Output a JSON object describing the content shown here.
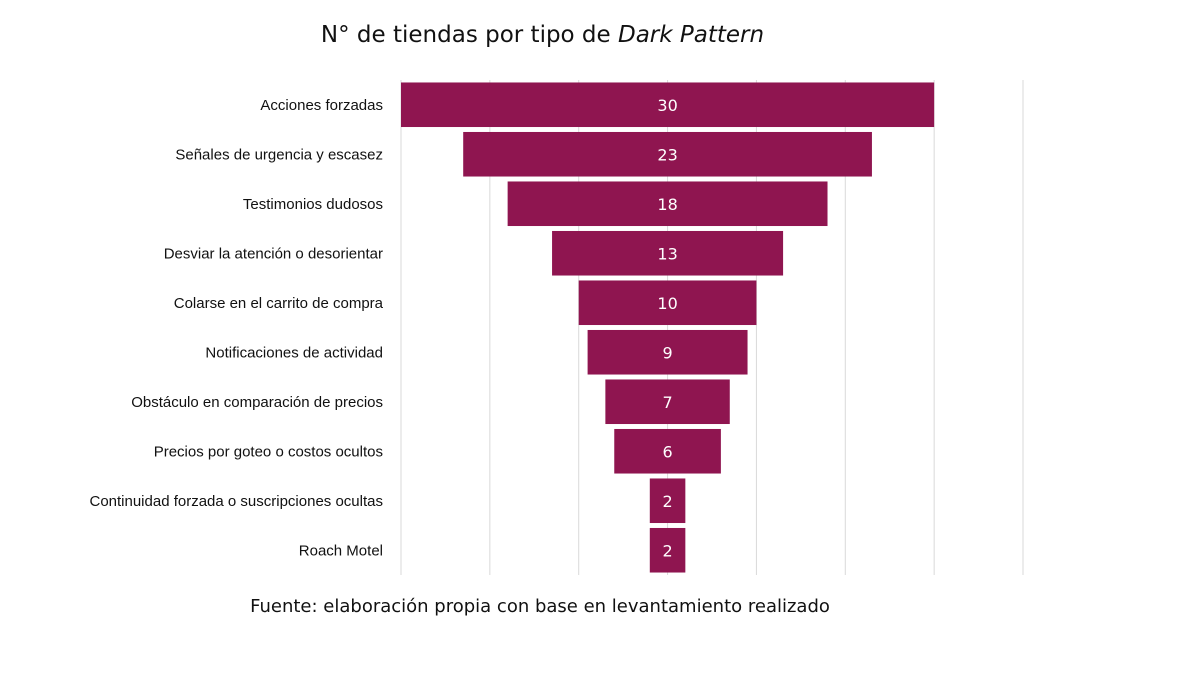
{
  "chart_data": {
    "type": "bar",
    "orientation": "horizontal-centered-funnel",
    "title": {
      "prefix": "N° de tiendas por tipo de ",
      "emphasis": "Dark Pattern"
    },
    "categories": [
      "Acciones forzadas",
      "Señales de urgencia y escasez",
      "Testimonios dudosos",
      "Desviar la atención o desorientar",
      "Colarse en el carrito de compra",
      "Notificaciones de actividad",
      "Obstáculo en comparación de precios",
      "Precios por goteo o costos ocultos",
      "Continuidad forzada o suscripciones ocultas",
      "Roach Motel"
    ],
    "values": [
      30,
      23,
      18,
      13,
      10,
      9,
      7,
      6,
      2,
      2
    ],
    "xlim": [
      0,
      35
    ],
    "grid": true,
    "data_labels": true,
    "bar_color": "#8f1550",
    "label_color": "#ffffff",
    "grid_color": "#d9d9d9"
  },
  "footer": {
    "source": "Fuente: elaboración propia con base en levantamiento realizado"
  }
}
